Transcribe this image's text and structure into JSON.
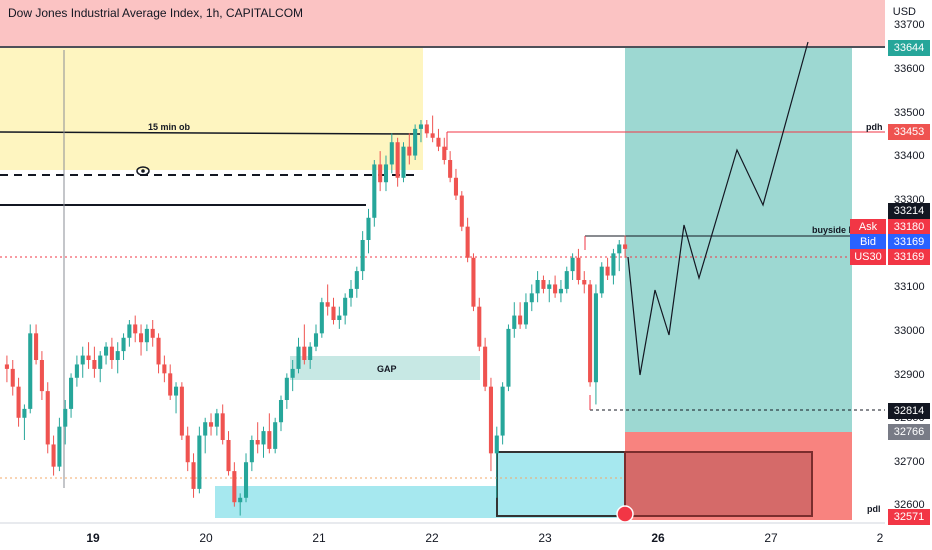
{
  "header": {
    "title": "Dow Jones Industrial Average Index, 1h, CAPITALCOM",
    "currency": "USD"
  },
  "chart_data": {
    "type": "candlestick",
    "title": "Dow Jones Industrial Average Index, 1h, CAPITALCOM",
    "currency": "USD",
    "x_tick_labels": [
      "19",
      "20",
      "21",
      "22",
      "23",
      "26",
      "27",
      "2"
    ],
    "y_tick_labels": [
      "33700",
      "33600",
      "33500",
      "33400",
      "33300",
      "33200",
      "33100",
      "33000",
      "32900",
      "32800",
      "32700",
      "32600"
    ],
    "ylim": [
      32550,
      33720
    ],
    "price_labels": [
      {
        "name": "target",
        "value": "33644",
        "color": "#26a69a"
      },
      {
        "name": "pdh",
        "value": "33453",
        "color": "#ef5350"
      },
      {
        "name": "level",
        "value": "33214",
        "color": "#131722"
      },
      {
        "name": "ask",
        "label": "Ask",
        "value": "33180",
        "color": "#f23645"
      },
      {
        "name": "bid",
        "label": "Bid",
        "value": "33169",
        "color": "#2962ff"
      },
      {
        "name": "symbol",
        "label": "US30",
        "value": "33169",
        "color": "#f23645"
      },
      {
        "name": "entry",
        "value": "32814",
        "color": "#131722"
      },
      {
        "name": "stop",
        "value": "32766",
        "color": "#787b86"
      },
      {
        "name": "pdl",
        "value": "32571",
        "color": "#f23645"
      }
    ],
    "annotations": {
      "ob_label": "15 min ob",
      "gap_label": "GAP",
      "pdh_label": "pdh",
      "pdl_label": "pdl",
      "liquidity_label": "buyside liqu"
    },
    "candles": [
      [
        32900,
        32920,
        32860,
        32890
      ],
      [
        32890,
        32910,
        32830,
        32850
      ],
      [
        32850,
        32870,
        32760,
        32780
      ],
      [
        32780,
        32810,
        32730,
        32800
      ],
      [
        32800,
        32990,
        32790,
        32970
      ],
      [
        32970,
        32990,
        32900,
        32910
      ],
      [
        32910,
        32930,
        32820,
        32840
      ],
      [
        32840,
        32860,
        32700,
        32720
      ],
      [
        32720,
        32740,
        32650,
        32670
      ],
      [
        32670,
        32780,
        32660,
        32760
      ],
      [
        32760,
        32820,
        32720,
        32800
      ],
      [
        32800,
        32880,
        32780,
        32870
      ],
      [
        32870,
        32920,
        32850,
        32900
      ],
      [
        32900,
        32940,
        32870,
        32920
      ],
      [
        32920,
        32950,
        32890,
        32910
      ],
      [
        32910,
        32940,
        32870,
        32890
      ],
      [
        32890,
        32930,
        32860,
        32920
      ],
      [
        32920,
        32950,
        32900,
        32940
      ],
      [
        32940,
        32960,
        32890,
        32910
      ],
      [
        32910,
        32950,
        32880,
        32930
      ],
      [
        32930,
        32970,
        32910,
        32960
      ],
      [
        32960,
        33000,
        32940,
        32990
      ],
      [
        32990,
        33010,
        32950,
        32970
      ],
      [
        32970,
        32990,
        32920,
        32950
      ],
      [
        32950,
        32990,
        32930,
        32980
      ],
      [
        32980,
        33000,
        32940,
        32960
      ],
      [
        32960,
        32970,
        32880,
        32900
      ],
      [
        32900,
        32920,
        32860,
        32880
      ],
      [
        32880,
        32900,
        32820,
        32830
      ],
      [
        32830,
        32860,
        32790,
        32850
      ],
      [
        32850,
        32860,
        32730,
        32740
      ],
      [
        32740,
        32760,
        32660,
        32680
      ],
      [
        32680,
        32700,
        32600,
        32620
      ],
      [
        32620,
        32760,
        32610,
        32740
      ],
      [
        32740,
        32780,
        32700,
        32770
      ],
      [
        32770,
        32790,
        32740,
        32760
      ],
      [
        32760,
        32800,
        32740,
        32790
      ],
      [
        32790,
        32810,
        32720,
        32730
      ],
      [
        32730,
        32750,
        32650,
        32660
      ],
      [
        32660,
        32680,
        32580,
        32590
      ],
      [
        32590,
        32610,
        32560,
        32600
      ],
      [
        32600,
        32700,
        32590,
        32680
      ],
      [
        32680,
        32740,
        32660,
        32730
      ],
      [
        32730,
        32770,
        32700,
        32720
      ],
      [
        32720,
        32760,
        32690,
        32750
      ],
      [
        32750,
        32790,
        32700,
        32710
      ],
      [
        32710,
        32780,
        32700,
        32770
      ],
      [
        32770,
        32830,
        32750,
        32820
      ],
      [
        32820,
        32880,
        32800,
        32870
      ],
      [
        32870,
        32910,
        32840,
        32890
      ],
      [
        32890,
        32960,
        32880,
        32940
      ],
      [
        32940,
        32990,
        32900,
        32910
      ],
      [
        32910,
        32950,
        32890,
        32940
      ],
      [
        32940,
        32990,
        32930,
        32970
      ],
      [
        32970,
        33050,
        32960,
        33040
      ],
      [
        33040,
        33080,
        33010,
        33030
      ],
      [
        33030,
        33050,
        32990,
        33000
      ],
      [
        33000,
        33030,
        32980,
        33010
      ],
      [
        33010,
        33060,
        32990,
        33050
      ],
      [
        33050,
        33090,
        33030,
        33070
      ],
      [
        33070,
        33120,
        33050,
        33110
      ],
      [
        33110,
        33200,
        33090,
        33180
      ],
      [
        33180,
        33250,
        33150,
        33230
      ],
      [
        33230,
        33360,
        33210,
        33350
      ],
      [
        33350,
        33380,
        33290,
        33310
      ],
      [
        33310,
        33370,
        33290,
        33350
      ],
      [
        33350,
        33420,
        33330,
        33400
      ],
      [
        33400,
        33410,
        33300,
        33320
      ],
      [
        33320,
        33400,
        33310,
        33390
      ],
      [
        33390,
        33420,
        33350,
        33370
      ],
      [
        33370,
        33440,
        33360,
        33430
      ],
      [
        33430,
        33450,
        33400,
        33440
      ],
      [
        33440,
        33450,
        33410,
        33420
      ],
      [
        33420,
        33460,
        33400,
        33410
      ],
      [
        33410,
        33430,
        33380,
        33390
      ],
      [
        33390,
        33410,
        33350,
        33360
      ],
      [
        33360,
        33380,
        33310,
        33320
      ],
      [
        33320,
        33340,
        33270,
        33280
      ],
      [
        33280,
        33290,
        33200,
        33210
      ],
      [
        33210,
        33230,
        33130,
        33140
      ],
      [
        33140,
        33150,
        33020,
        33030
      ],
      [
        33030,
        33050,
        32930,
        32940
      ],
      [
        32940,
        32960,
        32840,
        32850
      ],
      [
        32850,
        32870,
        32660,
        32700
      ],
      [
        32700,
        32760,
        32600,
        32740
      ],
      [
        32740,
        32860,
        32720,
        32850
      ],
      [
        32850,
        32990,
        32840,
        32980
      ],
      [
        32980,
        33040,
        32960,
        33010
      ],
      [
        33010,
        33040,
        32980,
        32990
      ],
      [
        32990,
        33060,
        32980,
        33040
      ],
      [
        33040,
        33080,
        33020,
        33060
      ],
      [
        33060,
        33110,
        33040,
        33090
      ],
      [
        33090,
        33100,
        33060,
        33070
      ],
      [
        33070,
        33090,
        33040,
        33080
      ],
      [
        33080,
        33100,
        33050,
        33060
      ],
      [
        33060,
        33090,
        33040,
        33070
      ],
      [
        33070,
        33120,
        33060,
        33110
      ],
      [
        33110,
        33150,
        33090,
        33140
      ],
      [
        33140,
        33160,
        33080,
        33090
      ],
      [
        33090,
        33110,
        33060,
        33080
      ],
      [
        33080,
        33090,
        32850,
        32860
      ],
      [
        32860,
        33080,
        32810,
        33060
      ],
      [
        33060,
        33130,
        33050,
        33120
      ],
      [
        33120,
        33140,
        33090,
        33100
      ],
      [
        33100,
        33160,
        33080,
        33150
      ],
      [
        33150,
        33180,
        33110,
        33170
      ],
      [
        33170,
        33190,
        33140,
        33160
      ]
    ],
    "projection": [
      [
        33169,
        32890
      ],
      [
        33169,
        32890
      ],
      [
        32890,
        33100
      ],
      [
        33100,
        32990
      ],
      [
        32990,
        33240
      ],
      [
        33240,
        33120
      ],
      [
        33120,
        33410
      ],
      [
        33410,
        33290
      ],
      [
        33290,
        33660
      ]
    ]
  }
}
